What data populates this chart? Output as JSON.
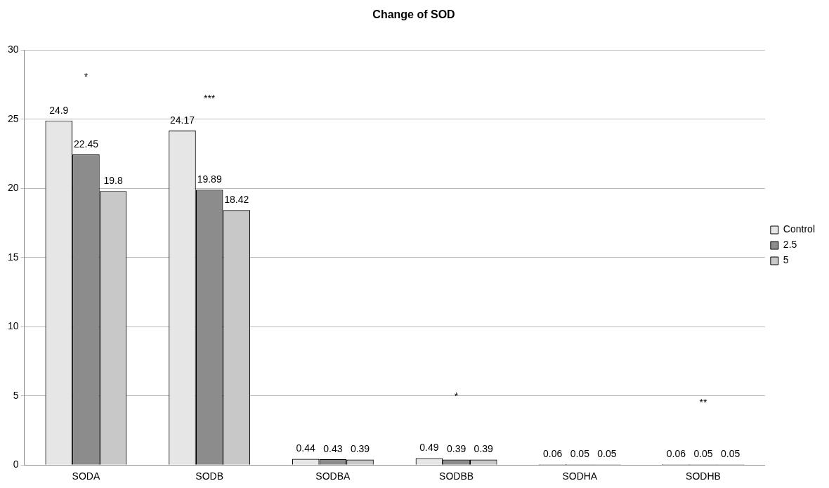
{
  "chart_data": {
    "type": "bar",
    "title": "Change of SOD",
    "categories": [
      "SODA",
      "SODB",
      "SODBA",
      "SODBB",
      "SODHA",
      "SODHB"
    ],
    "series": [
      {
        "name": "Control",
        "color": "#e6e6e6",
        "values": [
          24.9,
          24.17,
          0.44,
          0.49,
          0.06,
          0.06
        ]
      },
      {
        "name": "2.5",
        "color": "#8c8c8c",
        "values": [
          22.45,
          19.89,
          0.43,
          0.39,
          0.05,
          0.05
        ]
      },
      {
        "name": "5",
        "color": "#c8c8c8",
        "values": [
          19.8,
          18.42,
          0.39,
          0.39,
          0.05,
          0.05
        ]
      }
    ],
    "ylim": [
      0,
      30
    ],
    "yticks": [
      0,
      5,
      10,
      15,
      20,
      25,
      30
    ],
    "grid": "y",
    "legend": "right",
    "data_labels": true,
    "annotations": [
      "*",
      "***",
      "*",
      "**"
    ]
  }
}
